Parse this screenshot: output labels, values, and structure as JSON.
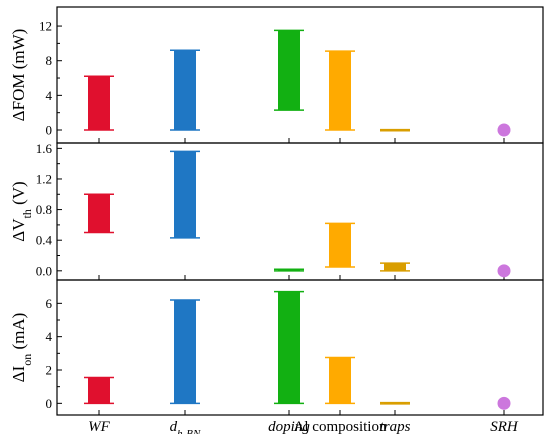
{
  "chart_data": {
    "type": "bar",
    "categories": [
      {
        "id": "wf",
        "text": "WF",
        "italic": true
      },
      {
        "id": "dhbn",
        "text": "d",
        "sub": "h-BN",
        "italic": true
      },
      {
        "id": "doping",
        "text": "doping",
        "italic": true
      },
      {
        "id": "al",
        "text": "Al composition",
        "italic": false
      },
      {
        "id": "traps",
        "text": "traps",
        "italic": true
      },
      {
        "id": "srh",
        "text": "SRH",
        "italic": true
      }
    ],
    "colors": [
      "#e0102e",
      "#1f77c4",
      "#12b012",
      "#ffaa00",
      "#d99e00",
      "#cc77dd"
    ],
    "grid": false,
    "panels": [
      {
        "ylabel_prefix": "ΔFOM (mW)",
        "ylim": [
          -1.5,
          14.2
        ],
        "yticks": [
          0,
          4,
          8,
          12
        ],
        "tick_labels": [
          "0",
          "4",
          "8",
          "12"
        ],
        "ranges": [
          [
            0,
            6.2
          ],
          [
            0,
            9.2
          ],
          [
            2.3,
            11.5
          ],
          [
            0,
            9.1
          ],
          [
            0,
            0.05
          ],
          null
        ],
        "point": {
          "category_index": 5,
          "value": 0
        }
      },
      {
        "ylabel_prefix": "ΔV",
        "ylabel_sub": "th",
        "ylabel_suffix": " (V)",
        "ylim": [
          -0.12,
          1.67
        ],
        "yticks": [
          0,
          0.4,
          0.8,
          1.2,
          1.6
        ],
        "tick_labels": [
          "0.0",
          "0.4",
          "0.8",
          "1.2",
          "1.6"
        ],
        "ranges": [
          [
            0.5,
            1.0
          ],
          [
            0.43,
            1.56
          ],
          [
            0,
            0.02
          ],
          [
            0.05,
            0.62
          ],
          [
            0,
            0.1
          ],
          null
        ],
        "point": {
          "category_index": 5,
          "value": 0
        }
      },
      {
        "ylabel_prefix": "ΔI",
        "ylabel_sub": "on",
        "ylabel_suffix": " (mA)",
        "ylim": [
          -0.7,
          7.4
        ],
        "yticks": [
          0,
          2,
          4,
          6
        ],
        "tick_labels": [
          "0",
          "2",
          "4",
          "6"
        ],
        "ranges": [
          [
            0,
            1.55
          ],
          [
            0,
            6.2
          ],
          [
            0,
            6.7
          ],
          [
            0,
            2.75
          ],
          [
            0,
            0.04
          ],
          null
        ],
        "point": {
          "category_index": 5,
          "value": 0
        }
      }
    ]
  }
}
